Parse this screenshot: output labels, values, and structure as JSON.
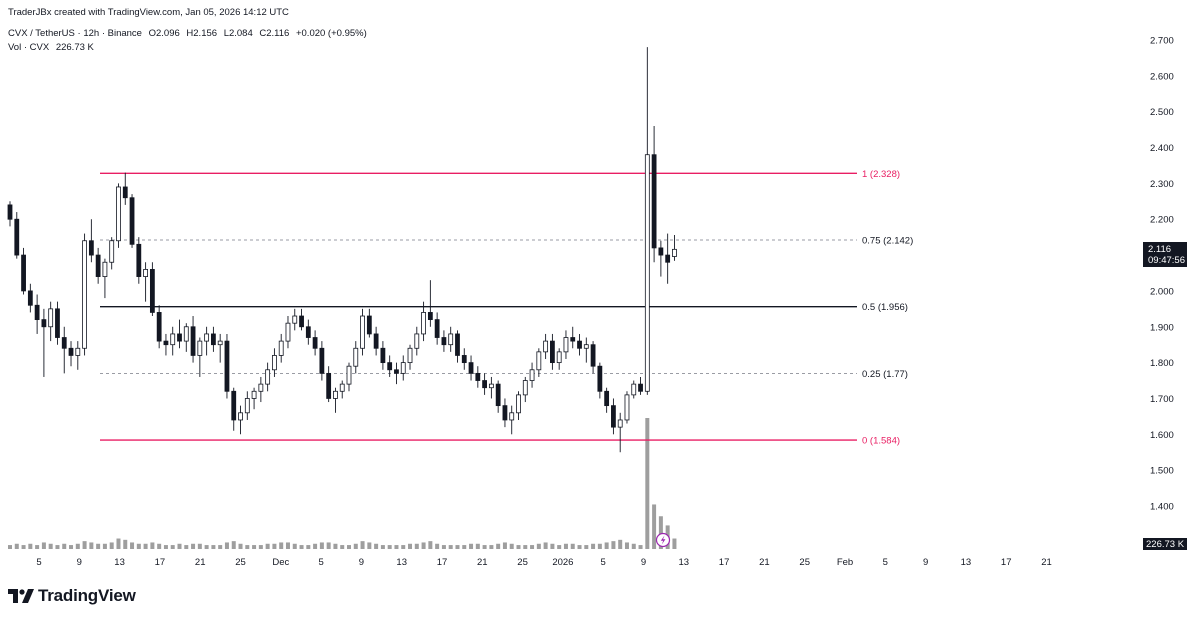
{
  "header": {
    "credit": "TraderJBx created with TradingView.com, Jan 05, 2026 14:12 UTC",
    "symbol": "CVX / TetherUS · 12h · Binance",
    "open": "O2.096",
    "high": "H2.156",
    "low": "L2.084",
    "close": "C2.116",
    "change": "+0.020 (+0.95%)",
    "volume_label": "Vol · CVX",
    "volume_value": "226.73 K"
  },
  "price_badge": {
    "price": "2.116",
    "countdown": "09:47:56"
  },
  "volume_badge": "226.73 K",
  "logo_text": "TradingView",
  "colors": {
    "fib_pink": "#e91e63",
    "fib_black": "#131722",
    "candle_up": "#ffffff",
    "candle_down": "#131722",
    "volume": "#9e9e9e"
  },
  "chart_data": {
    "type": "candlestick",
    "price_axis": {
      "ylim": [
        1.3,
        2.75
      ],
      "ticks": [
        "1.400",
        "1.500",
        "1.600",
        "1.700",
        "1.800",
        "1.900",
        "2.000",
        "2.100",
        "2.200",
        "2.300",
        "2.400",
        "2.500",
        "2.600",
        "2.700"
      ]
    },
    "time_axis": {
      "ticks": [
        "5",
        "9",
        "13",
        "17",
        "21",
        "25",
        "Dec",
        "5",
        "9",
        "13",
        "17",
        "21",
        "25",
        "2026",
        "5",
        "9",
        "13",
        "17",
        "21",
        "25",
        "Feb",
        "5",
        "9",
        "13",
        "17",
        "21"
      ]
    },
    "fib_levels": [
      {
        "ratio": "1",
        "price": 2.328,
        "label": "1 (2.328)",
        "color": "#e91e63",
        "style": "solid"
      },
      {
        "ratio": "0.75",
        "price": 2.142,
        "label": "0.75 (2.142)",
        "color": "#787b86",
        "style": "dashed"
      },
      {
        "ratio": "0.5",
        "price": 1.956,
        "label": "0.5 (1.956)",
        "color": "#131722",
        "style": "solid"
      },
      {
        "ratio": "0.25",
        "price": 1.77,
        "label": "0.25 (1.77)",
        "color": "#787b86",
        "style": "dashed"
      },
      {
        "ratio": "0",
        "price": 1.584,
        "label": "0 (1.584)",
        "color": "#e91e63",
        "style": "solid"
      }
    ],
    "candles_ohlc": [
      [
        2.24,
        2.25,
        2.18,
        2.2
      ],
      [
        2.2,
        2.22,
        2.09,
        2.1
      ],
      [
        2.1,
        2.12,
        1.99,
        2.0
      ],
      [
        2.0,
        2.02,
        1.94,
        1.96
      ],
      [
        1.96,
        1.99,
        1.88,
        1.92
      ],
      [
        1.92,
        1.95,
        1.76,
        1.9
      ],
      [
        1.9,
        1.97,
        1.86,
        1.95
      ],
      [
        1.95,
        1.97,
        1.85,
        1.87
      ],
      [
        1.87,
        1.9,
        1.77,
        1.84
      ],
      [
        1.84,
        1.86,
        1.79,
        1.82
      ],
      [
        1.82,
        1.86,
        1.78,
        1.84
      ],
      [
        1.84,
        2.16,
        1.82,
        2.14
      ],
      [
        2.14,
        2.2,
        2.08,
        2.1
      ],
      [
        2.1,
        2.12,
        2.02,
        2.04
      ],
      [
        2.04,
        2.09,
        1.98,
        2.08
      ],
      [
        2.08,
        2.15,
        2.06,
        2.14
      ],
      [
        2.14,
        2.3,
        2.12,
        2.29
      ],
      [
        2.29,
        2.33,
        2.24,
        2.26
      ],
      [
        2.26,
        2.27,
        2.12,
        2.13
      ],
      [
        2.13,
        2.15,
        2.02,
        2.04
      ],
      [
        2.04,
        2.08,
        1.97,
        2.06
      ],
      [
        2.06,
        2.08,
        1.93,
        1.94
      ],
      [
        1.94,
        1.96,
        1.84,
        1.86
      ],
      [
        1.86,
        1.88,
        1.82,
        1.85
      ],
      [
        1.85,
        1.9,
        1.82,
        1.88
      ],
      [
        1.88,
        1.92,
        1.84,
        1.86
      ],
      [
        1.86,
        1.91,
        1.83,
        1.9
      ],
      [
        1.9,
        1.93,
        1.8,
        1.82
      ],
      [
        1.82,
        1.87,
        1.76,
        1.86
      ],
      [
        1.86,
        1.9,
        1.82,
        1.88
      ],
      [
        1.88,
        1.9,
        1.83,
        1.85
      ],
      [
        1.85,
        1.88,
        1.8,
        1.86
      ],
      [
        1.86,
        1.88,
        1.7,
        1.72
      ],
      [
        1.72,
        1.73,
        1.61,
        1.64
      ],
      [
        1.64,
        1.68,
        1.6,
        1.66
      ],
      [
        1.66,
        1.72,
        1.64,
        1.7
      ],
      [
        1.7,
        1.73,
        1.67,
        1.72
      ],
      [
        1.72,
        1.76,
        1.69,
        1.74
      ],
      [
        1.74,
        1.8,
        1.72,
        1.78
      ],
      [
        1.78,
        1.84,
        1.76,
        1.82
      ],
      [
        1.82,
        1.88,
        1.8,
        1.86
      ],
      [
        1.86,
        1.93,
        1.84,
        1.91
      ],
      [
        1.91,
        1.95,
        1.89,
        1.93
      ],
      [
        1.93,
        1.95,
        1.89,
        1.9
      ],
      [
        1.9,
        1.92,
        1.85,
        1.87
      ],
      [
        1.87,
        1.89,
        1.82,
        1.84
      ],
      [
        1.84,
        1.86,
        1.75,
        1.77
      ],
      [
        1.77,
        1.79,
        1.69,
        1.7
      ],
      [
        1.7,
        1.73,
        1.66,
        1.72
      ],
      [
        1.72,
        1.75,
        1.7,
        1.74
      ],
      [
        1.74,
        1.8,
        1.72,
        1.79
      ],
      [
        1.79,
        1.86,
        1.77,
        1.84
      ],
      [
        1.84,
        1.95,
        1.82,
        1.93
      ],
      [
        1.93,
        1.95,
        1.87,
        1.88
      ],
      [
        1.88,
        1.9,
        1.82,
        1.84
      ],
      [
        1.84,
        1.86,
        1.78,
        1.8
      ],
      [
        1.8,
        1.82,
        1.76,
        1.78
      ],
      [
        1.78,
        1.8,
        1.74,
        1.77
      ],
      [
        1.77,
        1.82,
        1.75,
        1.8
      ],
      [
        1.8,
        1.85,
        1.78,
        1.84
      ],
      [
        1.84,
        1.9,
        1.82,
        1.88
      ],
      [
        1.88,
        1.97,
        1.86,
        1.94
      ],
      [
        1.94,
        2.03,
        1.9,
        1.92
      ],
      [
        1.92,
        1.94,
        1.85,
        1.87
      ],
      [
        1.87,
        1.89,
        1.83,
        1.85
      ],
      [
        1.85,
        1.9,
        1.83,
        1.88
      ],
      [
        1.88,
        1.89,
        1.8,
        1.82
      ],
      [
        1.82,
        1.84,
        1.78,
        1.8
      ],
      [
        1.8,
        1.82,
        1.75,
        1.77
      ],
      [
        1.77,
        1.79,
        1.73,
        1.75
      ],
      [
        1.75,
        1.77,
        1.71,
        1.73
      ],
      [
        1.73,
        1.76,
        1.7,
        1.74
      ],
      [
        1.74,
        1.75,
        1.66,
        1.68
      ],
      [
        1.68,
        1.7,
        1.62,
        1.64
      ],
      [
        1.64,
        1.68,
        1.6,
        1.66
      ],
      [
        1.66,
        1.72,
        1.64,
        1.71
      ],
      [
        1.71,
        1.76,
        1.69,
        1.75
      ],
      [
        1.75,
        1.8,
        1.73,
        1.78
      ],
      [
        1.78,
        1.84,
        1.76,
        1.83
      ],
      [
        1.83,
        1.88,
        1.81,
        1.86
      ],
      [
        1.86,
        1.88,
        1.78,
        1.8
      ],
      [
        1.8,
        1.84,
        1.78,
        1.83
      ],
      [
        1.83,
        1.89,
        1.81,
        1.87
      ],
      [
        1.87,
        1.9,
        1.84,
        1.86
      ],
      [
        1.86,
        1.88,
        1.82,
        1.84
      ],
      [
        1.84,
        1.87,
        1.8,
        1.85
      ],
      [
        1.85,
        1.86,
        1.77,
        1.79
      ],
      [
        1.79,
        1.8,
        1.7,
        1.72
      ],
      [
        1.72,
        1.73,
        1.66,
        1.68
      ],
      [
        1.68,
        1.7,
        1.6,
        1.62
      ],
      [
        1.62,
        1.66,
        1.55,
        1.64
      ],
      [
        1.64,
        1.72,
        1.63,
        1.71
      ],
      [
        1.71,
        1.75,
        1.7,
        1.74
      ],
      [
        1.74,
        1.76,
        1.71,
        1.72
      ],
      [
        1.72,
        2.68,
        1.71,
        2.38
      ],
      [
        2.38,
        2.46,
        2.08,
        2.12
      ],
      [
        2.12,
        2.14,
        2.04,
        2.1
      ],
      [
        2.1,
        2.16,
        2.02,
        2.08
      ],
      [
        2.096,
        2.156,
        2.084,
        2.116
      ]
    ],
    "volume_relative": [
      0.03,
      0.04,
      0.03,
      0.04,
      0.03,
      0.05,
      0.04,
      0.03,
      0.04,
      0.03,
      0.04,
      0.06,
      0.05,
      0.04,
      0.04,
      0.05,
      0.08,
      0.07,
      0.05,
      0.04,
      0.04,
      0.05,
      0.04,
      0.03,
      0.03,
      0.04,
      0.03,
      0.04,
      0.04,
      0.03,
      0.03,
      0.03,
      0.05,
      0.06,
      0.04,
      0.03,
      0.03,
      0.03,
      0.04,
      0.04,
      0.05,
      0.05,
      0.04,
      0.03,
      0.03,
      0.04,
      0.05,
      0.05,
      0.04,
      0.03,
      0.03,
      0.04,
      0.06,
      0.05,
      0.04,
      0.03,
      0.03,
      0.03,
      0.03,
      0.04,
      0.04,
      0.05,
      0.06,
      0.04,
      0.03,
      0.03,
      0.03,
      0.03,
      0.04,
      0.04,
      0.03,
      0.03,
      0.04,
      0.05,
      0.04,
      0.03,
      0.03,
      0.03,
      0.04,
      0.05,
      0.04,
      0.03,
      0.04,
      0.04,
      0.03,
      0.03,
      0.04,
      0.04,
      0.05,
      0.06,
      0.07,
      0.05,
      0.04,
      0.03,
      1.0,
      0.34,
      0.25,
      0.18,
      0.08
    ]
  }
}
